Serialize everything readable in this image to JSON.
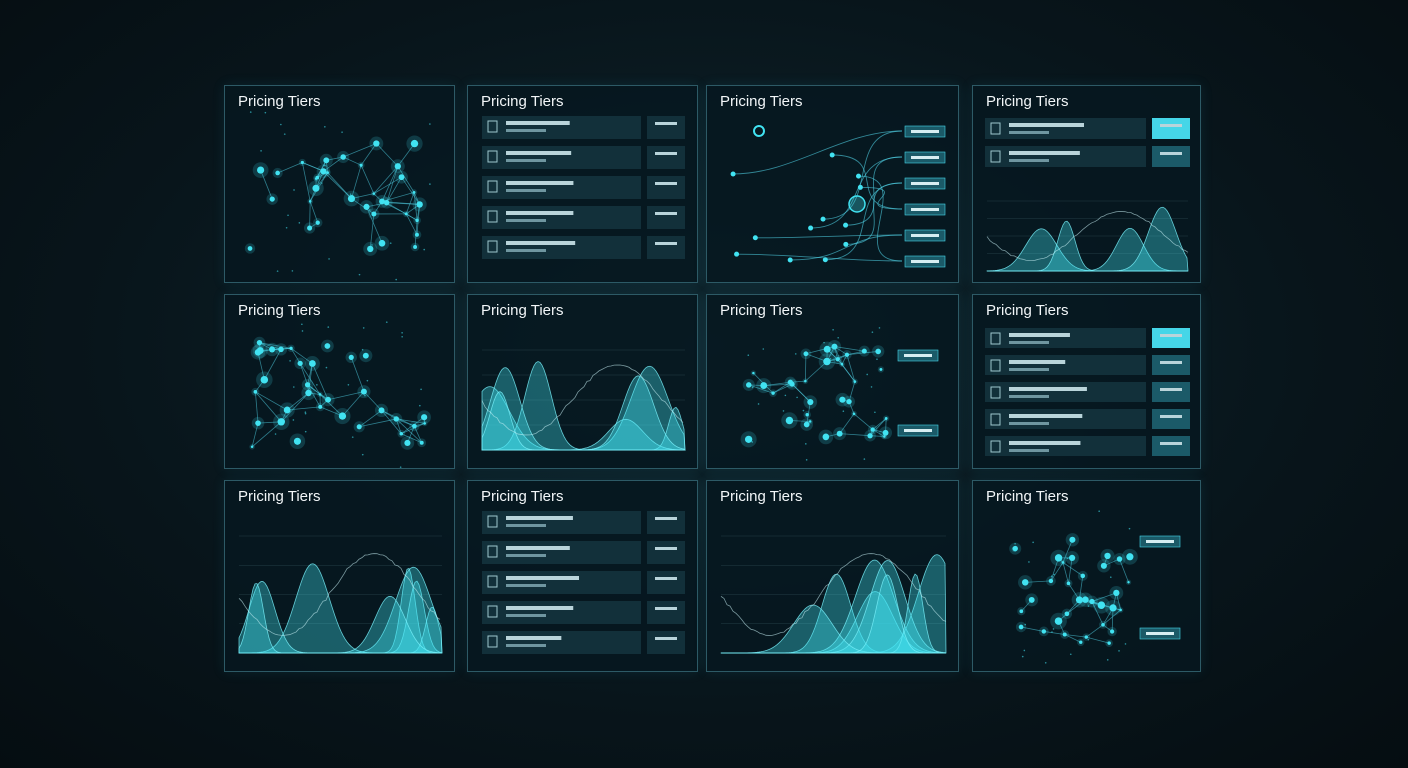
{
  "panels": [
    {
      "title": "Pricing Tiers"
    },
    {
      "title": "Pricing Tiers"
    },
    {
      "title": "Pricing Tiers"
    },
    {
      "title": "Pricing Tiers"
    },
    {
      "title": "Pricing Tiers"
    },
    {
      "title": "Pricing Tiers"
    },
    {
      "title": "Pricing Tiers"
    },
    {
      "title": "Pricing Tiers"
    },
    {
      "title": "Pricing Tiers"
    },
    {
      "title": "Pricing Tiers"
    },
    {
      "title": "Pricing Tiers"
    },
    {
      "title": "Pricing Tiers"
    }
  ]
}
